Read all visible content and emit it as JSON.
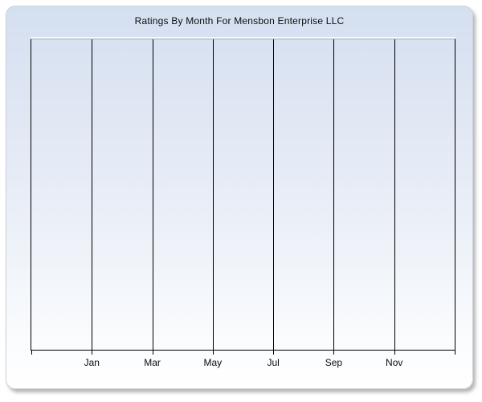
{
  "chart_data": {
    "type": "line",
    "title": "Ratings By Month For Mensbon Enterprise LLC",
    "xlabel": "",
    "ylabel": "",
    "x_tick_labels": [
      "Jan",
      "Mar",
      "May",
      "Jul",
      "Sep",
      "Nov"
    ],
    "y_tick_labels": [],
    "series": [],
    "legend": "none",
    "grid": "vertical-gridlines-only",
    "plot_is_empty": true
  },
  "colors": {
    "panel_gradient_top": "#d4dff0",
    "panel_gradient_bottom": "#ffffff",
    "gridline": "#000000",
    "axis_line": "#000000",
    "plot_top_border": "#a6adb9",
    "title_text": "#0c0c0c",
    "label_text": "#0c0c0c",
    "outer_background": "#ffffff",
    "panel_shadow": "#6e6e6e"
  }
}
